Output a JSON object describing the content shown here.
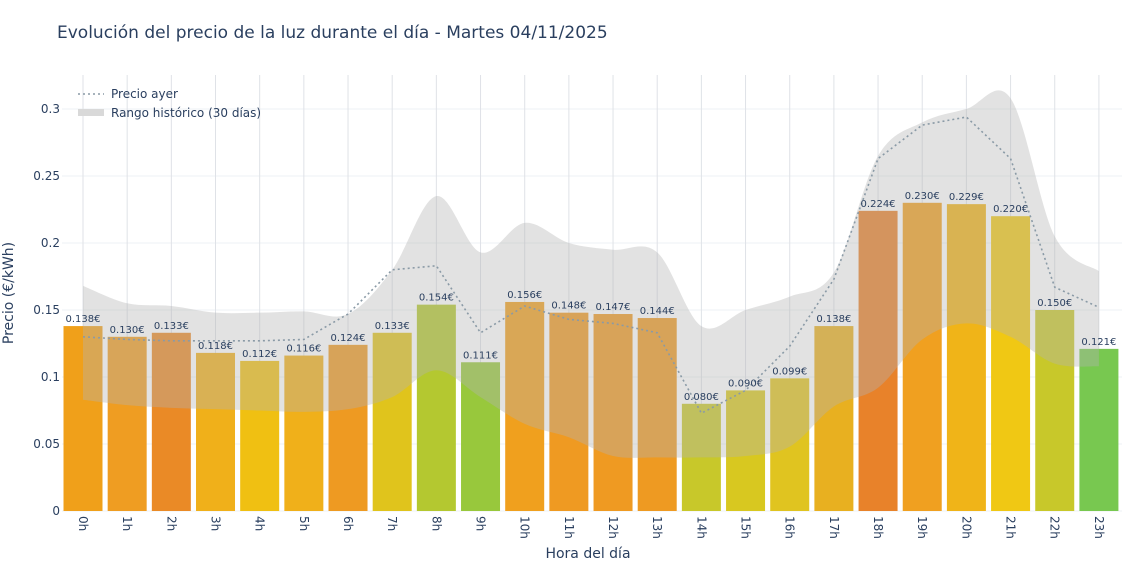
{
  "chart_data": {
    "type": "bar",
    "title": "Evolución del precio de la luz durante el día - Martes 04/11/2025",
    "xlabel": "Hora del día",
    "ylabel": "Precio (€/kWh)",
    "ylim": [
      0,
      0.325
    ],
    "yticks": [
      0,
      0.05,
      0.1,
      0.15,
      0.2,
      0.25,
      0.3
    ],
    "ytick_labels": [
      "0",
      "0.05",
      "0.1",
      "0.15",
      "0.2",
      "0.25",
      "0.3"
    ],
    "grid": true,
    "legend_position": "top-left",
    "categories": [
      "0h",
      "1h",
      "2h",
      "3h",
      "4h",
      "5h",
      "6h",
      "7h",
      "8h",
      "9h",
      "10h",
      "11h",
      "12h",
      "13h",
      "14h",
      "15h",
      "16h",
      "17h",
      "18h",
      "19h",
      "20h",
      "21h",
      "22h",
      "23h"
    ],
    "values": [
      0.138,
      0.13,
      0.133,
      0.118,
      0.112,
      0.116,
      0.124,
      0.133,
      0.154,
      0.111,
      0.156,
      0.148,
      0.147,
      0.144,
      0.08,
      0.09,
      0.099,
      0.138,
      0.224,
      0.23,
      0.229,
      0.22,
      0.15,
      0.121
    ],
    "value_labels": [
      "0.138€",
      "0.130€",
      "0.133€",
      "0.118€",
      "0.112€",
      "0.116€",
      "0.124€",
      "0.133€",
      "0.154€",
      "0.111€",
      "0.156€",
      "0.148€",
      "0.147€",
      "0.144€",
      "0.080€",
      "0.090€",
      "0.099€",
      "0.138€",
      "0.224€",
      "0.230€",
      "0.229€",
      "0.220€",
      "0.150€",
      "0.121€"
    ],
    "bar_colors": [
      "#f0a01a",
      "#ef9d22",
      "#ea8a26",
      "#f0b01a",
      "#f0c012",
      "#f0b01a",
      "#ee9a22",
      "#e0c41c",
      "#b4c830",
      "#98c83c",
      "#f0a01e",
      "#ef9a22",
      "#ef9a22",
      "#ee9a22",
      "#c8c82a",
      "#d8c820",
      "#e0c420",
      "#e8b020",
      "#e8822a",
      "#f0a020",
      "#f0b418",
      "#f0c814",
      "#c8c82a",
      "#78c850"
    ],
    "series": [
      {
        "name": "Precio ayer",
        "type": "line",
        "style": "dotted",
        "color": "#8a9aa6",
        "values": [
          0.13,
          0.128,
          0.127,
          0.127,
          0.127,
          0.128,
          0.147,
          0.18,
          0.183,
          0.133,
          0.153,
          0.143,
          0.14,
          0.133,
          0.073,
          0.09,
          0.123,
          0.173,
          0.263,
          0.288,
          0.294,
          0.263,
          0.167,
          0.152
        ]
      },
      {
        "name": "Rango histórico (30 días)",
        "type": "band",
        "color": "#d3d3d3",
        "upper": [
          0.168,
          0.155,
          0.153,
          0.148,
          0.148,
          0.149,
          0.147,
          0.18,
          0.235,
          0.193,
          0.215,
          0.2,
          0.195,
          0.193,
          0.138,
          0.15,
          0.16,
          0.178,
          0.265,
          0.29,
          0.3,
          0.308,
          0.205,
          0.179
        ],
        "lower": [
          0.083,
          0.079,
          0.077,
          0.076,
          0.075,
          0.074,
          0.076,
          0.085,
          0.105,
          0.085,
          0.065,
          0.055,
          0.041,
          0.04,
          0.04,
          0.041,
          0.048,
          0.078,
          0.092,
          0.128,
          0.14,
          0.13,
          0.11,
          0.108
        ]
      }
    ]
  }
}
